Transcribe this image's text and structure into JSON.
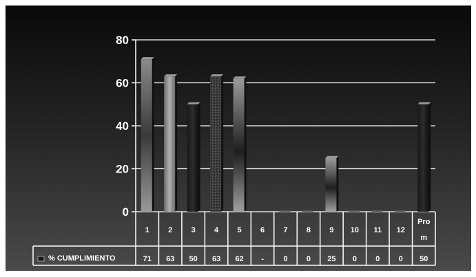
{
  "chart_data": {
    "type": "bar",
    "categories": [
      "1",
      "2",
      "3",
      "4",
      "5",
      "6",
      "7",
      "8",
      "9",
      "10",
      "11",
      "12",
      "Prom"
    ],
    "series": [
      {
        "name": "% CUMPLIMIENTO",
        "values": [
          71,
          63,
          50,
          63,
          62,
          null,
          0,
          0,
          25,
          0,
          0,
          0,
          50
        ],
        "labels": [
          "71",
          "63",
          "50",
          "63",
          "62",
          "-",
          "0",
          "0",
          "25",
          "0",
          "0",
          "0",
          "50"
        ]
      }
    ],
    "ylim": [
      0,
      80
    ],
    "yticks": [
      "0",
      "20",
      "40",
      "60",
      "80"
    ],
    "grid": true,
    "legend": "data-table"
  },
  "colors": {
    "background_top": "#0a0a0a",
    "background_bottom": "#4a4a4a",
    "grid": "#ffffff",
    "text": "#ffffff"
  }
}
